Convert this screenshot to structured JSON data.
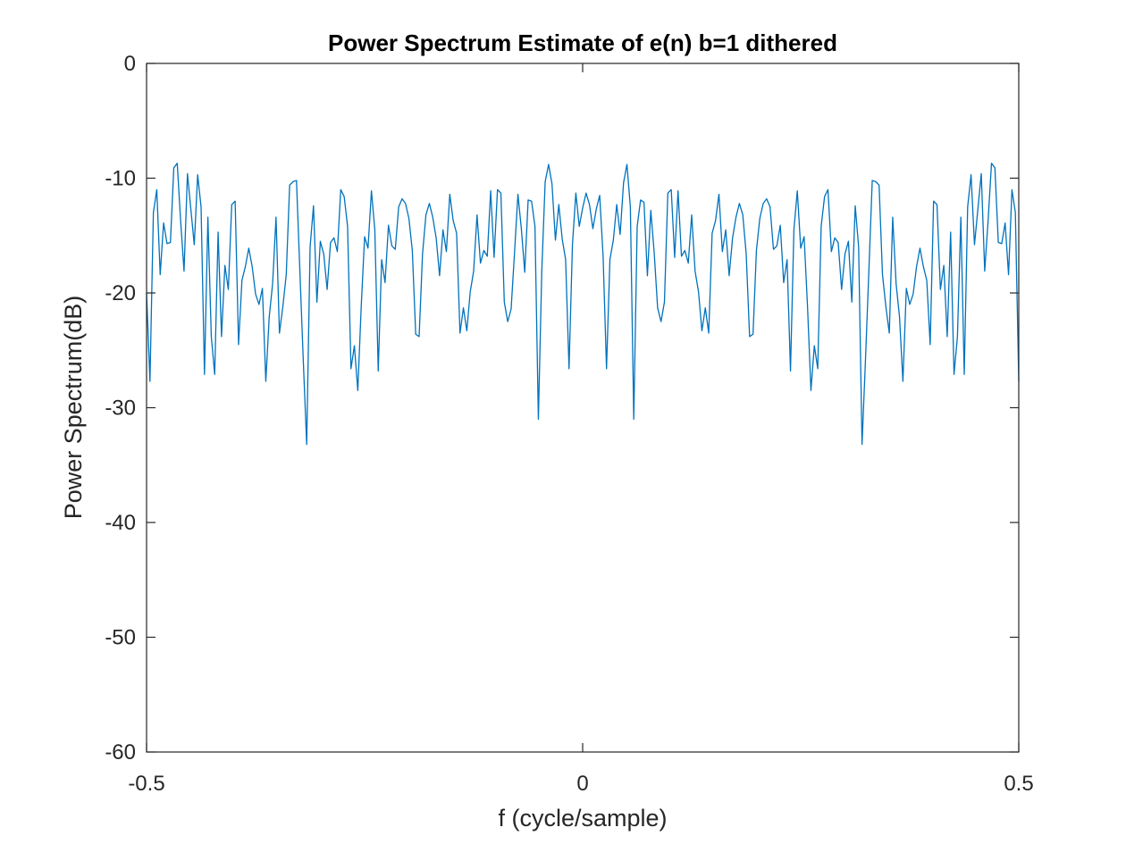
{
  "chart_data": {
    "type": "line",
    "title": "Power Spectrum Estimate of e(n) b=1 dithered",
    "xlabel": "f (cycle/sample)",
    "ylabel": "Power Spectrum(dB)",
    "xlim": [
      -0.5,
      0.5
    ],
    "ylim": [
      -60,
      0
    ],
    "xticks": [
      -0.5,
      0,
      0.5
    ],
    "xtick_labels": [
      "-0.5",
      "0",
      "0.5"
    ],
    "yticks": [
      0,
      -10,
      -20,
      -30,
      -40,
      -50,
      -60
    ],
    "ytick_labels": [
      "0",
      "-10",
      "-20",
      "-30",
      "-40",
      "-50",
      "-60"
    ],
    "grid": false,
    "box": true,
    "series": [
      {
        "color": "#0072BD",
        "x_start": -0.5,
        "x_step": 0.00390625,
        "values": [
          -20,
          -27.7,
          -13,
          -11,
          -18.4,
          -13.9,
          -15.7,
          -15.6,
          -9.1,
          -8.7,
          -13.7,
          -18.1,
          -9.6,
          -12.7,
          -15.8,
          -9.7,
          -12.5,
          -27.1,
          -13.4,
          -23.8,
          -27.1,
          -14.7,
          -23.8,
          -17.6,
          -19.7,
          -12.3,
          -12,
          -24.5,
          -18.9,
          -17.7,
          -16.1,
          -17.7,
          -20.1,
          -21,
          -19.6,
          -27.7,
          -22.1,
          -19.2,
          -13.4,
          -23.5,
          -21.2,
          -18.4,
          -10.6,
          -10.3,
          -10.2,
          -18.1,
          -25.9,
          -33.2,
          -16,
          -12.4,
          -20.8,
          -15.5,
          -16.6,
          -19.7,
          -15.6,
          -15.2,
          -16.4,
          -11,
          -11.6,
          -14.2,
          -26.6,
          -24.6,
          -28.5,
          -21.2,
          -15.1,
          -16.1,
          -11.1,
          -14.5,
          -26.8,
          -17.1,
          -19.1,
          -14.1,
          -15.9,
          -16.2,
          -12.5,
          -11.8,
          -12.2,
          -13.5,
          -16.3,
          -23.6,
          -23.8,
          -16.6,
          -13.2,
          -12.2,
          -13.4,
          -15.2,
          -18.5,
          -14.5,
          -16.4,
          -11.4,
          -13.7,
          -14.8,
          -23.5,
          -21.3,
          -23.3,
          -19.9,
          -18.1,
          -13.2,
          -17.4,
          -16.3,
          -16.8,
          -11.1,
          -16.9,
          -11,
          -11.3,
          -20.8,
          -22.5,
          -21.4,
          -16.5,
          -11.4,
          -14.4,
          -18.2,
          -11.9,
          -12,
          -14.2,
          -31,
          -18.1,
          -10.3,
          -8.8,
          -10.5,
          -15.4,
          -12.3,
          -15.3,
          -17.1,
          -26.6,
          -15.8,
          -11.3,
          -14.2,
          -12.6,
          -11.3,
          -12.3,
          -14.4,
          -12.7,
          -11.5,
          -16.8,
          -26.6,
          -17.1,
          -15.4,
          -12.3,
          -14.9,
          -10.4,
          -8.8,
          -12.5,
          -31,
          -14.2,
          -11.9,
          -12.1,
          -18.5,
          -12.8,
          -16.5,
          -21.3,
          -22.5,
          -20.8,
          -11.3,
          -11,
          -16.9,
          -11.1,
          -16.8,
          -16.3,
          -17.4,
          -13.2,
          -18.1,
          -19.9,
          -23.3,
          -21.3,
          -23.5,
          -14.8,
          -13.7,
          -11.4,
          -16.4,
          -14.5,
          -18.5,
          -15.2,
          -13.4,
          -12.2,
          -13.2,
          -16.6,
          -23.8,
          -23.6,
          -16.3,
          -13.5,
          -12.2,
          -11.8,
          -12.5,
          -16.2,
          -15.9,
          -14.1,
          -19.1,
          -17.1,
          -26.8,
          -14.5,
          -11.1,
          -16.1,
          -15.1,
          -21.2,
          -28.5,
          -24.6,
          -26.6,
          -14.2,
          -11.6,
          -11,
          -16.4,
          -15.2,
          -15.6,
          -19.7,
          -16.6,
          -15.5,
          -20.8,
          -12.4,
          -16,
          -33.2,
          -25.9,
          -18.1,
          -10.2,
          -10.3,
          -10.6,
          -18.4,
          -21.2,
          -23.5,
          -13.4,
          -19.2,
          -22.1,
          -27.7,
          -19.6,
          -21,
          -20.1,
          -17.7,
          -16.1,
          -17.7,
          -18.9,
          -24.5,
          -12,
          -12.3,
          -19.7,
          -17.6,
          -23.8,
          -14.7,
          -27.1,
          -23.8,
          -13.4,
          -27.1,
          -12.5,
          -9.7,
          -15.8,
          -12.7,
          -9.6,
          -18.1,
          -13.7,
          -8.7,
          -9.1,
          -15.6,
          -15.7,
          -13.9,
          -18.4,
          -11,
          -13,
          -27.7
        ]
      }
    ]
  }
}
